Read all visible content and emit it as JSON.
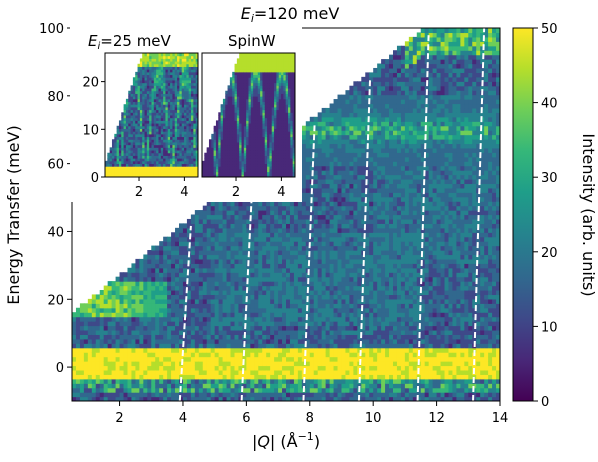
{
  "chart_data": [
    {
      "type": "heatmap",
      "role": "main",
      "title_prefix": "E",
      "title_sub": "i",
      "title_value": "=120 meV",
      "xlabel_prefix": "|",
      "xlabel_var": "Q",
      "xlabel_suffix": "| (Å",
      "xlabel_exp": "−1",
      "xlabel_close": ")",
      "ylabel": "Energy Transfer (meV)",
      "xlim": [
        0.5,
        14
      ],
      "ylim": [
        -10,
        100
      ],
      "xticks": [
        2,
        4,
        6,
        8,
        10,
        12,
        14
      ],
      "yticks": [
        0,
        20,
        40,
        60,
        80,
        100
      ],
      "colormap": "viridis",
      "clim": [
        0,
        50
      ],
      "gap_q_values": [
        3.9,
        5.85,
        7.8,
        9.55,
        11.4,
        13.15
      ],
      "features": [
        {
          "name": "elastic line",
          "energy": [
            -3,
            6
          ],
          "intensity": 50
        },
        {
          "name": "low-Q band",
          "q": [
            0.6,
            3.5
          ],
          "energy": [
            17,
            25
          ],
          "intensity": 45
        },
        {
          "name": "high-energy band",
          "q": [
            6,
            12
          ],
          "energy": [
            66,
            75
          ],
          "intensity": 28
        },
        {
          "name": "mid band",
          "q": [
            6,
            11
          ],
          "energy": [
            15,
            36
          ],
          "intensity": 18
        }
      ]
    },
    {
      "type": "heatmap",
      "role": "inset-left",
      "title_prefix": "E",
      "title_sub": "i",
      "title_value": "=25 meV",
      "xlim": [
        0.5,
        4.6
      ],
      "ylim": [
        0,
        26
      ],
      "xticks": [
        2,
        4
      ],
      "yticks": [
        0,
        10,
        20
      ],
      "clim": [
        0,
        50
      ]
    },
    {
      "type": "heatmap",
      "role": "inset-right",
      "title": "SpinW",
      "xlim": [
        0.5,
        4.6
      ],
      "ylim": [
        0,
        26
      ],
      "xticks": [
        2,
        4
      ],
      "clim": [
        0,
        50
      ]
    }
  ],
  "colorbar": {
    "label": "Intensity (arb. units)",
    "ticks": [
      0,
      10,
      20,
      30,
      40,
      50
    ],
    "colors": [
      "#440154",
      "#482878",
      "#3e4989",
      "#31688e",
      "#26828e",
      "#1f9e89",
      "#35b779",
      "#6ece58",
      "#b5de2b",
      "#fde725"
    ]
  }
}
